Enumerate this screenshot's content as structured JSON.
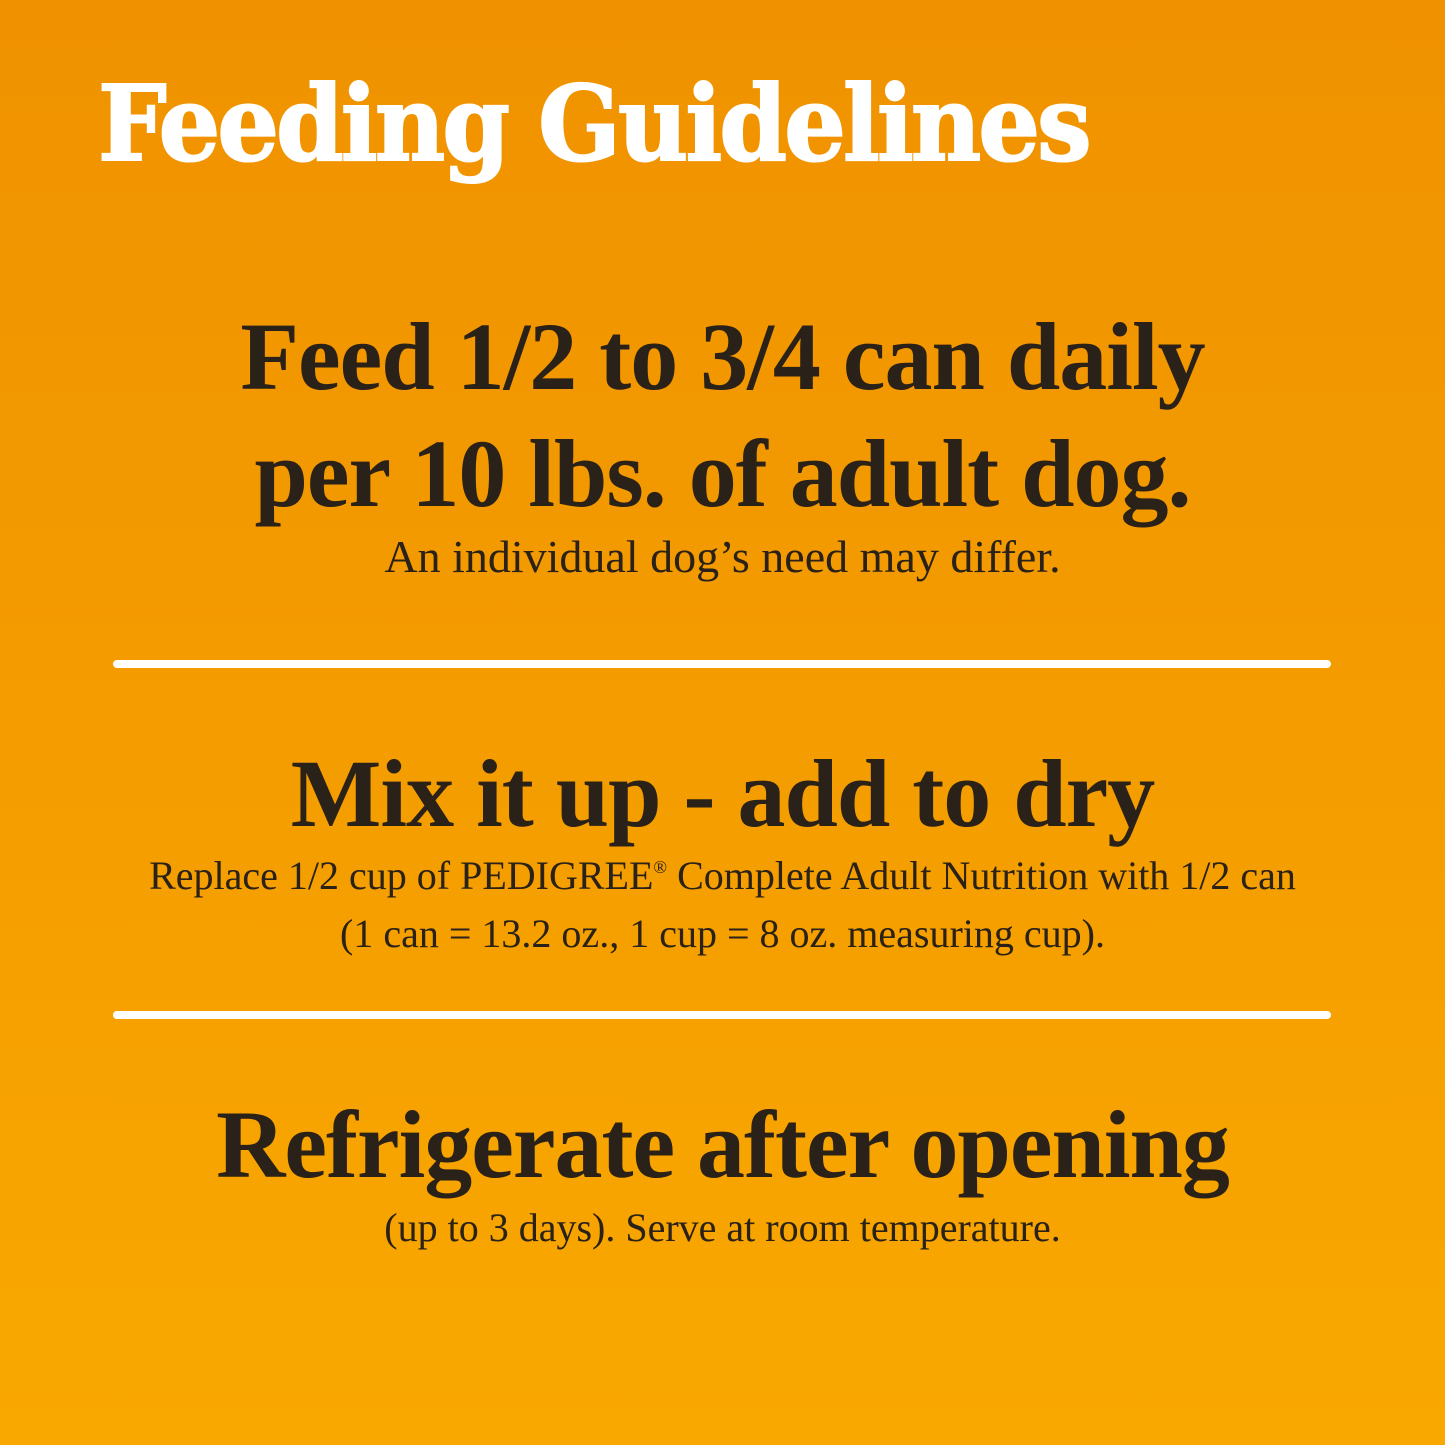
{
  "title": "Feeding Guidelines",
  "sections": [
    {
      "heading_lines": [
        "Feed 1/2 to 3/4 can daily",
        "per 10 lbs. of adult dog."
      ],
      "note_lines": [
        "An individual dog’s need may differ."
      ]
    },
    {
      "heading_lines": [
        "Mix it up - add to dry"
      ],
      "note_lines": [
        "Replace 1/2 cup of PEDIGREE",
        "®",
        " Complete Adult Nutrition with 1/2 can",
        "(1 can = 13.2 oz., 1 cup = 8 oz. measuring cup)."
      ]
    },
    {
      "heading_lines": [
        "Refrigerate after opening"
      ],
      "note_lines": [
        "(up to 3 days). Serve at room temperature."
      ]
    }
  ],
  "colors": {
    "background_top": "#F09200",
    "background_bottom": "#F9A800",
    "text": "#2a2118",
    "title": "#ffffff",
    "rule": "#ffffff"
  }
}
